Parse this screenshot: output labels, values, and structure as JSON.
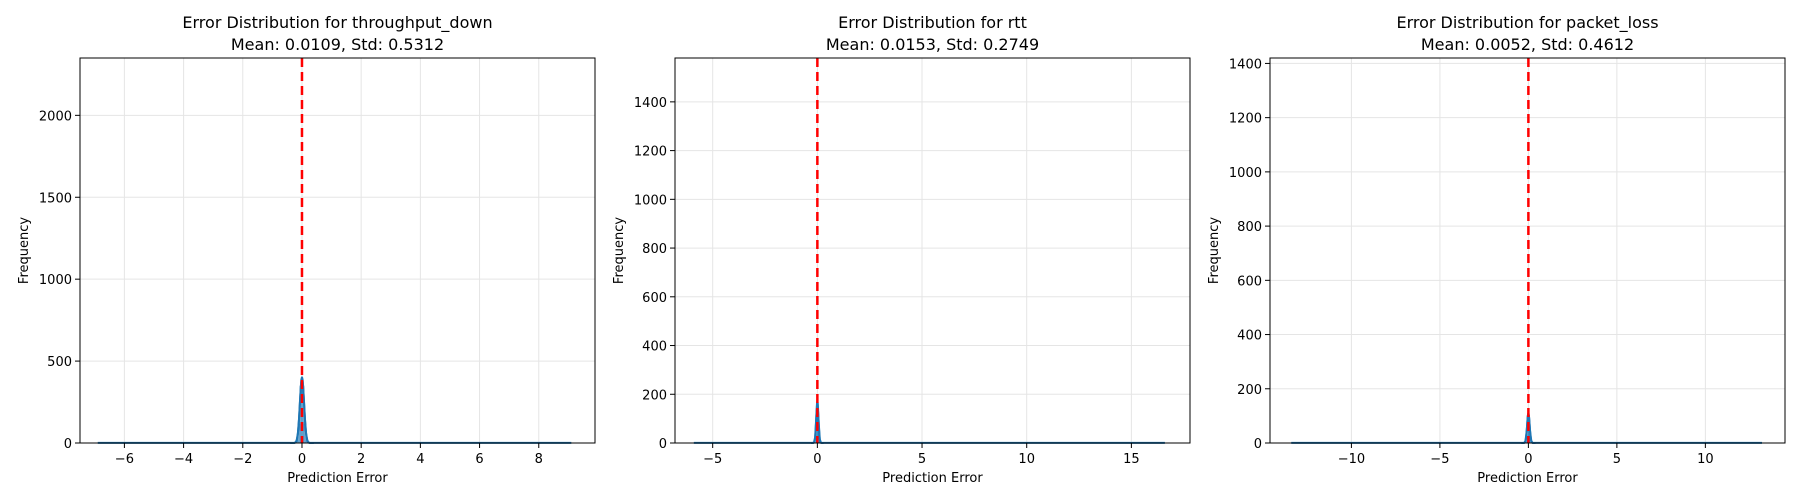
{
  "colors": {
    "histogram_fill": "#1f77b4",
    "kde_line": "#1f77b4",
    "reference_line": "#ff0000",
    "grid": "#e5e5e5",
    "axes": "#000000"
  },
  "chart_data": [
    {
      "type": "histogram",
      "title_line1": "Error Distribution for throughput_down",
      "title_line2": "Mean: 0.0109, Std: 0.5312",
      "xlabel": "Prediction Error",
      "ylabel": "Frequency",
      "xlim": [
        -7.5,
        9.9
      ],
      "ylim": [
        0,
        2350
      ],
      "xticks": [
        -6,
        -4,
        -2,
        0,
        2,
        4,
        6,
        8
      ],
      "yticks": [
        0,
        500,
        1000,
        1500,
        2000
      ],
      "data_range": [
        -6.9,
        9.1
      ],
      "reference_line_x": 0,
      "peak_x": 0,
      "peak_y": 400,
      "peak_halfwidth": 0.2,
      "grid": true
    },
    {
      "type": "histogram",
      "title_line1": "Error Distribution for rtt",
      "title_line2": "Mean: 0.0153, Std: 0.2749",
      "xlabel": "Prediction Error",
      "ylabel": "Frequency",
      "xlim": [
        -6.8,
        17.8
      ],
      "ylim": [
        0,
        1580
      ],
      "xticks": [
        -5,
        0,
        5,
        10,
        15
      ],
      "yticks": [
        0,
        200,
        400,
        600,
        800,
        1000,
        1200,
        1400
      ],
      "data_range": [
        -5.9,
        16.6
      ],
      "reference_line_x": 0,
      "peak_x": 0,
      "peak_y": 170,
      "peak_halfwidth": 0.15,
      "grid": true
    },
    {
      "type": "histogram",
      "title_line1": "Error Distribution for packet_loss",
      "title_line2": "Mean: 0.0052, Std: 0.4612",
      "xlabel": "Prediction Error",
      "ylabel": "Frequency",
      "xlim": [
        -14.6,
        14.5
      ],
      "ylim": [
        0,
        1420
      ],
      "xticks": [
        -10,
        -5,
        0,
        5,
        10
      ],
      "yticks": [
        0,
        200,
        400,
        600,
        800,
        1000,
        1200,
        1400
      ],
      "data_range": [
        -13.4,
        13.2
      ],
      "reference_line_x": 0,
      "peak_x": 0,
      "peak_y": 110,
      "peak_halfwidth": 0.2,
      "grid": true
    }
  ]
}
